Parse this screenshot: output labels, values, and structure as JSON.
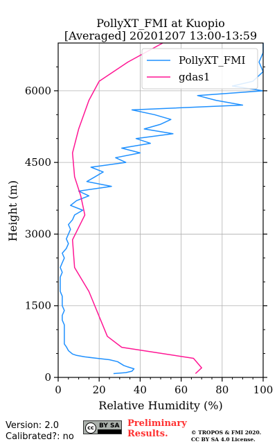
{
  "chart_data": {
    "type": "line",
    "title": "PollyXT_FMI at Kuopio",
    "subtitle": "[Averaged] 20201207 13:00-13:59",
    "xlabel": "Relative Humidity (%)",
    "ylabel": "Height (m)",
    "xlim": [
      0,
      100
    ],
    "ylim": [
      0,
      7000
    ],
    "xticks": [
      "0",
      "20",
      "40",
      "60",
      "80",
      "100"
    ],
    "yticks": [
      "0",
      "1500",
      "3000",
      "4500",
      "6000"
    ],
    "grid": true,
    "legend_position": "top-right",
    "series": [
      {
        "name": "PollyXT_FMI",
        "color": "#1e90ff",
        "points": [
          [
            27,
            80
          ],
          [
            33,
            100
          ],
          [
            36,
            130
          ],
          [
            37,
            180
          ],
          [
            34,
            220
          ],
          [
            32,
            250
          ],
          [
            29,
            330
          ],
          [
            25,
            370
          ],
          [
            19,
            400
          ],
          [
            13,
            430
          ],
          [
            9,
            460
          ],
          [
            7,
            490
          ],
          [
            5,
            560
          ],
          [
            4,
            640
          ],
          [
            3,
            700
          ],
          [
            3,
            800
          ],
          [
            3,
            900
          ],
          [
            3,
            1000
          ],
          [
            3,
            1100
          ],
          [
            2,
            1200
          ],
          [
            2,
            1300
          ],
          [
            3,
            1400
          ],
          [
            2,
            1500
          ],
          [
            2,
            1600
          ],
          [
            2,
            1700
          ],
          [
            1,
            1800
          ],
          [
            1,
            1900
          ],
          [
            1,
            2000
          ],
          [
            1,
            2100
          ],
          [
            2,
            2200
          ],
          [
            1,
            2300
          ],
          [
            2,
            2400
          ],
          [
            3,
            2500
          ],
          [
            2,
            2600
          ],
          [
            4,
            2700
          ],
          [
            5,
            2800
          ],
          [
            4,
            2900
          ],
          [
            5,
            3000
          ],
          [
            6,
            3100
          ],
          [
            5,
            3200
          ],
          [
            7,
            3300
          ],
          [
            8,
            3400
          ],
          [
            12,
            3500
          ],
          [
            6,
            3600
          ],
          [
            9,
            3700
          ],
          [
            15,
            3800
          ],
          [
            10,
            3900
          ],
          [
            26,
            4000
          ],
          [
            14,
            4100
          ],
          [
            18,
            4200
          ],
          [
            22,
            4300
          ],
          [
            16,
            4400
          ],
          [
            33,
            4500
          ],
          [
            28,
            4600
          ],
          [
            40,
            4700
          ],
          [
            31,
            4800
          ],
          [
            45,
            4900
          ],
          [
            38,
            5000
          ],
          [
            56,
            5100
          ],
          [
            42,
            5200
          ],
          [
            50,
            5300
          ],
          [
            55,
            5400
          ],
          [
            47,
            5500
          ],
          [
            36,
            5600
          ],
          [
            90,
            5700
          ],
          [
            77,
            5800
          ],
          [
            68,
            5900
          ],
          [
            100,
            6000
          ],
          [
            85,
            6100
          ],
          [
            95,
            6200
          ],
          [
            100,
            6400
          ],
          [
            98,
            6600
          ],
          [
            100,
            6800
          ],
          [
            100,
            7000
          ]
        ]
      },
      {
        "name": "gdas1",
        "color": "#ff1493",
        "points": [
          [
            67,
            80
          ],
          [
            70,
            200
          ],
          [
            66,
            400
          ],
          [
            31,
            630
          ],
          [
            24,
            860
          ],
          [
            15,
            1800
          ],
          [
            8,
            2300
          ],
          [
            7,
            2880
          ],
          [
            13,
            3400
          ],
          [
            11,
            3800
          ],
          [
            8,
            4200
          ],
          [
            7,
            4700
          ],
          [
            10,
            5200
          ],
          [
            15,
            5800
          ],
          [
            20,
            6200
          ],
          [
            34,
            6600
          ],
          [
            51,
            7000
          ]
        ]
      }
    ]
  },
  "footer": {
    "version": "Version: 2.0",
    "calibrated": "Calibrated?: no",
    "cc_badge": "cc",
    "cc_badge_by": "BY SA",
    "preliminary_line1": "Preliminary",
    "preliminary_line2": "Results.",
    "copyright_line1": "© TROPOS & FMI 2020.",
    "copyright_line2": "CC BY SA 4.0 License."
  }
}
